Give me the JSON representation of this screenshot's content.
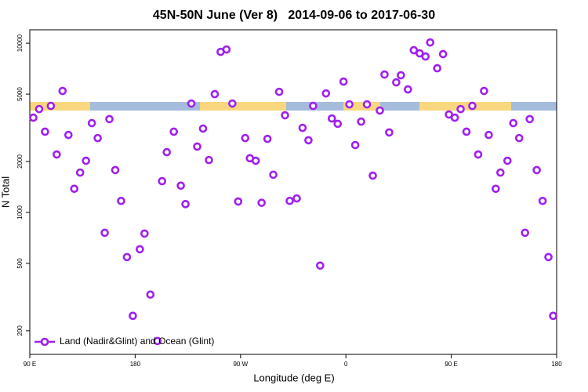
{
  "chart_data": {
    "type": "scatter",
    "title": "45N-50N June (Ver 8)   2014-09-06 to 2017-06-30",
    "x_label": "Longitude (deg E)",
    "y_label": "N Total",
    "xlim": [
      90,
      540
    ],
    "xticks": [
      {
        "value": 90,
        "label": "90 E"
      },
      {
        "value": 180,
        "label": "180"
      },
      {
        "value": 270,
        "label": "90 W"
      },
      {
        "value": 360,
        "label": "0"
      },
      {
        "value": 450,
        "label": "90 E"
      },
      {
        "value": 540,
        "label": "180"
      }
    ],
    "ylim": [
      145,
      12000
    ],
    "yticks": [
      200,
      500,
      1000,
      2000,
      5000,
      10000
    ],
    "ylog": true,
    "legend": "bottom-left",
    "x": [
      93,
      98,
      103,
      108,
      113,
      118,
      123,
      128,
      133,
      138,
      143,
      148,
      154,
      158,
      163,
      168,
      173,
      178,
      184,
      188,
      193,
      199,
      203,
      207,
      213,
      219,
      223,
      228,
      233,
      238,
      243,
      248,
      253,
      258,
      263,
      268,
      274,
      278,
      283,
      288,
      293,
      298,
      303,
      308,
      312,
      318,
      323,
      328,
      332,
      338,
      343,
      348,
      353,
      358,
      363,
      368,
      373,
      378,
      383,
      389,
      393,
      397,
      403,
      407,
      413,
      418,
      423,
      428,
      432,
      438,
      443,
      448,
      453,
      458,
      463,
      468,
      473,
      478,
      482,
      488,
      492,
      498,
      503,
      508,
      513,
      517,
      523,
      528,
      533,
      537
    ],
    "series": [
      {
        "name": "Land (Nadir&Glint) and Ocean (Glint)",
        "color": "#a020f0",
        "values": [
          3630,
          4080,
          3000,
          4260,
          2200,
          5220,
          2870,
          1380,
          1720,
          2020,
          3370,
          2750,
          758,
          3560,
          1780,
          1170,
          545,
          245,
          606,
          750,
          327,
          174,
          1530,
          2270,
          3000,
          1440,
          1120,
          4400,
          2450,
          3130,
          2040,
          5000,
          8890,
          9180,
          4400,
          1160,
          2750,
          2090,
          2020,
          1140,
          2720,
          1670,
          5160,
          3750,
          1170,
          1210,
          3160,
          2670,
          4260,
          485,
          5050,
          3590,
          3340,
          5930,
          4350,
          2500,
          3440,
          4350,
          1650,
          4000,
          6530,
          2970,
          5870,
          6460,
          5330,
          9090,
          8710,
          8340,
          10100,
          7110,
          8620,
          3790,
          3630,
          4080,
          3000,
          4260,
          2200,
          5220,
          2870,
          1380,
          1720,
          2020,
          3370,
          2750,
          758,
          3560,
          1780,
          1170,
          545,
          245
        ]
      }
    ]
  }
}
